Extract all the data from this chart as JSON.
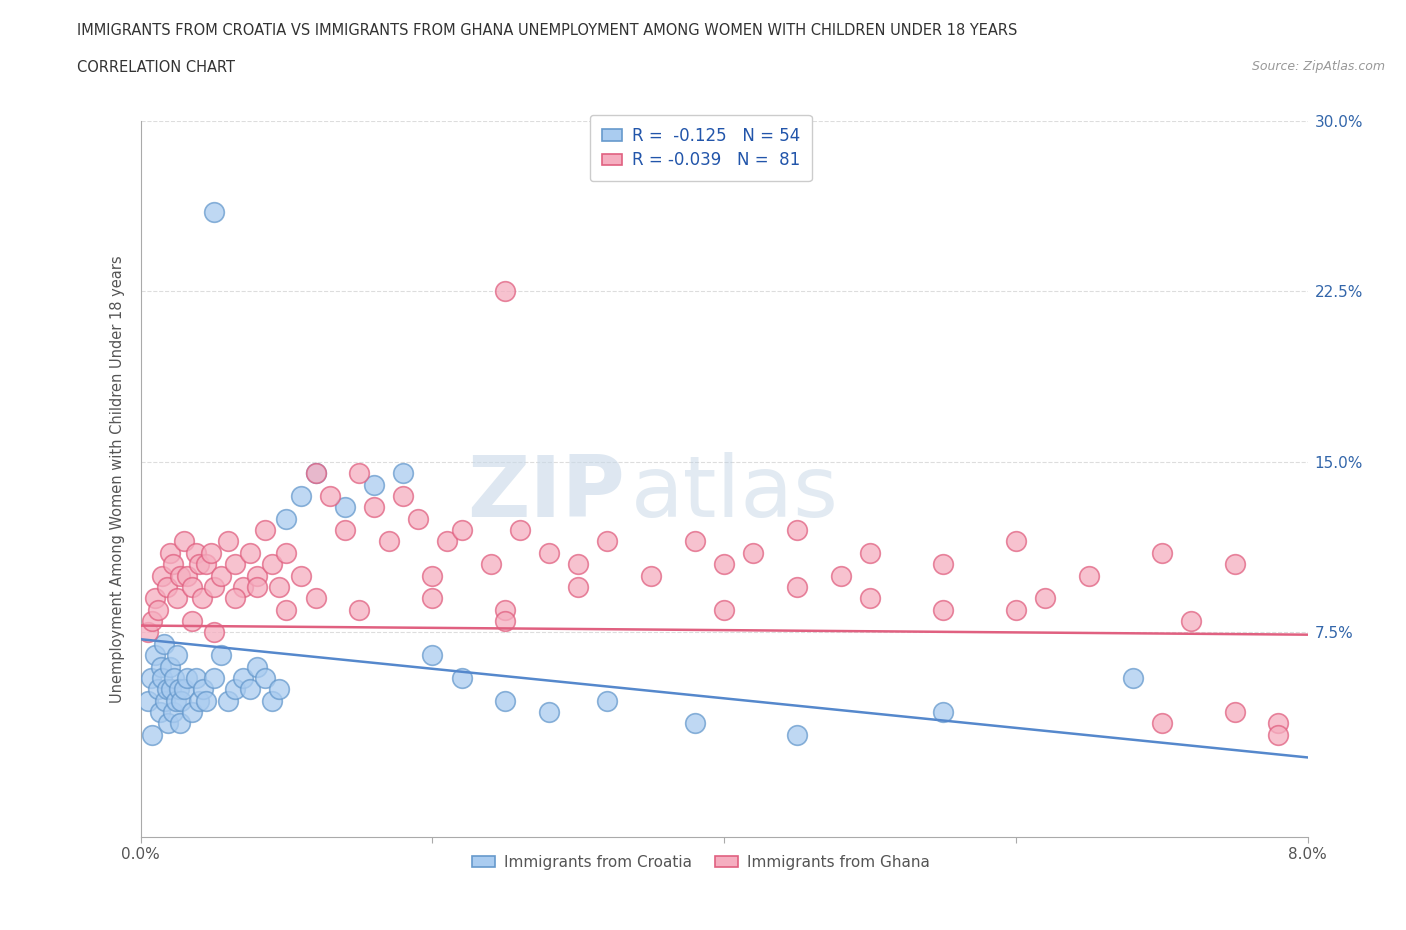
{
  "title": "IMMIGRANTS FROM CROATIA VS IMMIGRANTS FROM GHANA UNEMPLOYMENT AMONG WOMEN WITH CHILDREN UNDER 18 YEARS",
  "subtitle": "CORRELATION CHART",
  "source": "Source: ZipAtlas.com",
  "ylabel": "Unemployment Among Women with Children Under 18 years",
  "xlim": [
    0.0,
    8.0
  ],
  "ylim": [
    -1.5,
    30.0
  ],
  "yticks": [
    0.0,
    7.5,
    15.0,
    22.5,
    30.0
  ],
  "ytick_labels": [
    "",
    "7.5%",
    "15.0%",
    "22.5%",
    "30.0%"
  ],
  "xtick_positions": [
    0.0,
    2.0,
    4.0,
    6.0,
    8.0
  ],
  "xtick_labels_bottom": [
    "0.0%",
    "",
    "",
    "",
    "8.0%"
  ],
  "croatia_color": "#aaccf0",
  "ghana_color": "#f5aec0",
  "croatia_edge_color": "#6699cc",
  "ghana_edge_color": "#e06080",
  "croatia_line_color": "#5588cc",
  "ghana_line_color": "#e06080",
  "croatia_R": -0.125,
  "croatia_N": 54,
  "ghana_R": -0.039,
  "ghana_N": 81,
  "legend_label_croatia": "Immigrants from Croatia",
  "legend_label_ghana": "Immigrants from Ghana",
  "watermark_zip": "ZIP",
  "watermark_atlas": "atlas",
  "croatia_trend_start": 7.2,
  "croatia_trend_end": 2.0,
  "ghana_trend_start": 7.8,
  "ghana_trend_end": 7.4,
  "croatia_x": [
    0.05,
    0.07,
    0.08,
    0.1,
    0.12,
    0.13,
    0.14,
    0.15,
    0.16,
    0.17,
    0.18,
    0.19,
    0.2,
    0.21,
    0.22,
    0.23,
    0.24,
    0.25,
    0.26,
    0.27,
    0.28,
    0.3,
    0.32,
    0.35,
    0.38,
    0.4,
    0.43,
    0.45,
    0.5,
    0.55,
    0.6,
    0.65,
    0.7,
    0.75,
    0.8,
    0.85,
    0.9,
    0.95,
    1.0,
    1.1,
    1.2,
    1.4,
    1.6,
    1.8,
    2.0,
    2.2,
    2.5,
    2.8,
    3.2,
    3.8,
    4.5,
    5.5,
    6.8,
    0.5
  ],
  "croatia_y": [
    4.5,
    5.5,
    3.0,
    6.5,
    5.0,
    4.0,
    6.0,
    5.5,
    7.0,
    4.5,
    5.0,
    3.5,
    6.0,
    5.0,
    4.0,
    5.5,
    4.5,
    6.5,
    5.0,
    3.5,
    4.5,
    5.0,
    5.5,
    4.0,
    5.5,
    4.5,
    5.0,
    4.5,
    5.5,
    6.5,
    4.5,
    5.0,
    5.5,
    5.0,
    6.0,
    5.5,
    4.5,
    5.0,
    12.5,
    13.5,
    14.5,
    13.0,
    14.0,
    14.5,
    6.5,
    5.5,
    4.5,
    4.0,
    4.5,
    3.5,
    3.0,
    4.0,
    5.5,
    26.0
  ],
  "ghana_x": [
    0.05,
    0.08,
    0.1,
    0.12,
    0.15,
    0.18,
    0.2,
    0.22,
    0.25,
    0.27,
    0.3,
    0.32,
    0.35,
    0.38,
    0.4,
    0.42,
    0.45,
    0.48,
    0.5,
    0.55,
    0.6,
    0.65,
    0.7,
    0.75,
    0.8,
    0.85,
    0.9,
    0.95,
    1.0,
    1.1,
    1.2,
    1.3,
    1.4,
    1.5,
    1.6,
    1.7,
    1.8,
    1.9,
    2.0,
    2.1,
    2.2,
    2.4,
    2.5,
    2.6,
    2.8,
    3.0,
    3.2,
    3.5,
    3.8,
    4.0,
    4.2,
    4.5,
    4.8,
    5.0,
    5.5,
    6.0,
    6.5,
    7.0,
    7.2,
    7.5,
    7.8,
    2.5,
    0.35,
    0.5,
    0.65,
    0.8,
    1.0,
    1.2,
    1.5,
    2.0,
    2.5,
    3.0,
    4.0,
    5.0,
    6.0,
    7.0,
    7.5,
    7.8,
    4.5,
    5.5,
    6.2
  ],
  "ghana_y": [
    7.5,
    8.0,
    9.0,
    8.5,
    10.0,
    9.5,
    11.0,
    10.5,
    9.0,
    10.0,
    11.5,
    10.0,
    9.5,
    11.0,
    10.5,
    9.0,
    10.5,
    11.0,
    9.5,
    10.0,
    11.5,
    10.5,
    9.5,
    11.0,
    10.0,
    12.0,
    10.5,
    9.5,
    11.0,
    10.0,
    14.5,
    13.5,
    12.0,
    14.5,
    13.0,
    11.5,
    13.5,
    12.5,
    10.0,
    11.5,
    12.0,
    10.5,
    22.5,
    12.0,
    11.0,
    10.5,
    11.5,
    10.0,
    11.5,
    10.5,
    11.0,
    12.0,
    10.0,
    11.0,
    10.5,
    11.5,
    10.0,
    11.0,
    8.0,
    10.5,
    3.5,
    8.5,
    8.0,
    7.5,
    9.0,
    9.5,
    8.5,
    9.0,
    8.5,
    9.0,
    8.0,
    9.5,
    8.5,
    9.0,
    8.5,
    3.5,
    4.0,
    3.0,
    9.5,
    8.5,
    9.0
  ]
}
